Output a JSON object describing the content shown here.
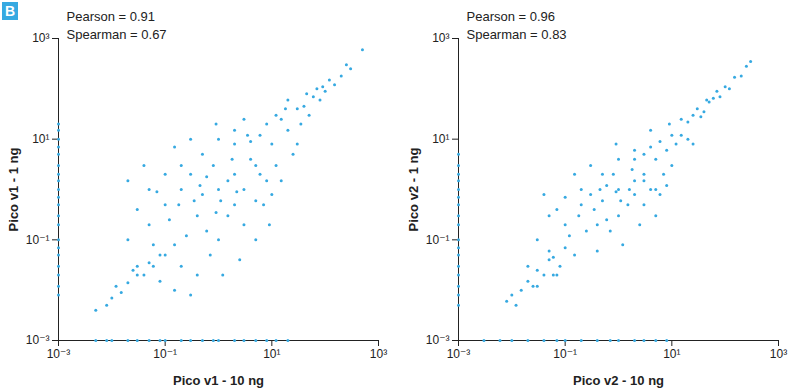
{
  "panel_label": "B",
  "chart_data": [
    {
      "type": "scatter",
      "xlabel": "Pico v1 - 10 ng",
      "ylabel": "Pico v1 - 1 ng",
      "annotations": [
        "Pearson = 0.91",
        "Spearman = 0.67"
      ],
      "color": "#36a9e1",
      "log": true,
      "grid": false,
      "xlim": [
        0.001,
        1000
      ],
      "ylim": [
        0.001,
        1000
      ],
      "xticks": [
        {
          "value": 0.001,
          "label": "10⁻³"
        },
        {
          "value": 0.1,
          "label": "10⁻¹"
        },
        {
          "value": 10,
          "label": "10¹"
        },
        {
          "value": 1000,
          "label": "10³"
        }
      ],
      "yticks": [
        {
          "value": 0.001,
          "label": "10⁻³"
        },
        {
          "value": 0.1,
          "label": "10⁻¹"
        },
        {
          "value": 10,
          "label": "10¹"
        },
        {
          "value": 1000,
          "label": "10³"
        }
      ],
      "x": [
        300,
        500,
        200,
        150,
        100,
        80,
        120,
        60,
        250,
        90,
        40,
        50,
        70,
        30,
        35,
        45,
        20,
        15,
        10,
        12,
        8,
        25,
        18,
        6,
        5,
        10,
        15,
        30,
        7,
        4,
        3,
        2,
        20,
        9,
        5,
        12,
        1,
        2,
        0.5,
        1.5,
        0.8,
        3,
        2,
        1,
        0.5,
        0.3,
        3,
        1,
        0.7,
        2,
        4,
        0.4,
        0.2,
        0.1,
        0.3,
        0.2,
        0.6,
        1.2,
        2.5,
        5,
        6,
        0.9,
        0.15,
        0.1,
        0.05,
        0.05,
        0.08,
        0.03,
        0.04,
        0.02,
        0.03,
        0.02,
        0.15,
        0.4,
        0.25,
        0.6,
        1.8,
        1.1,
        0.35,
        0.12,
        0.07,
        3.5,
        8,
        0.9,
        1.5,
        2.2,
        0.45,
        0.18,
        0.06,
        0.01,
        0.02,
        0.03,
        0.05,
        0.008,
        0.015,
        0.04,
        0.06,
        0.1,
        0.012,
        0.025,
        0.005,
        0.2,
        0.15,
        0.08,
        0.3,
        0.001,
        0.001,
        0.001,
        0.001,
        0.001,
        0.001,
        0.001,
        0.001,
        0.001,
        0.001,
        0.001,
        0.001,
        0.001,
        0.001,
        0.001,
        0.001,
        0.001,
        0.001,
        0.001,
        0.001,
        0.005,
        0.008,
        0.01,
        0.02,
        0.03,
        0.05,
        0.08,
        0.1,
        0.2,
        0.3,
        0.5,
        0.8,
        1,
        2,
        3,
        5,
        8,
        12,
        20
      ],
      "values": [
        250,
        600,
        180,
        120,
        90,
        60,
        150,
        70,
        300,
        110,
        45,
        30,
        100,
        40,
        20,
        80,
        15,
        25,
        8,
        3,
        20,
        5,
        40,
        12,
        3,
        0.8,
        1.5,
        8,
        0.5,
        9,
        25,
        15,
        60,
        0.2,
        0.1,
        30,
        1,
        2,
        0.8,
        0.3,
        3,
        1,
        0.5,
        10,
        5,
        2,
        0.2,
        0.1,
        0.05,
        8,
        4,
        0.3,
        1,
        0.5,
        10,
        3,
        0.15,
        0.02,
        0.04,
        0.6,
        2,
        20,
        0.08,
        2,
        1,
        0.2,
        0.05,
        0.4,
        3,
        0.1,
        0.03,
        1.5,
        7,
        0.02,
        0.12,
        1.8,
        4,
        0.6,
        0.6,
        0.25,
        0.9,
        12,
        1.5,
        0.35,
        1.5,
        0.9,
        1.2,
        0.5,
        0.08,
        0.007,
        0.014,
        0.02,
        0.035,
        0.005,
        0.009,
        0.02,
        0.03,
        0.05,
        0.012,
        0.025,
        0.004,
        0.03,
        0.01,
        0.015,
        0.008,
        20,
        15,
        10,
        7,
        5,
        3,
        2,
        1.5,
        1,
        0.7,
        0.5,
        0.3,
        0.2,
        0.1,
        0.07,
        0.05,
        0.03,
        0.02,
        0.012,
        0.008,
        0.001,
        0.001,
        0.001,
        0.001,
        0.001,
        0.001,
        0.001,
        0.001,
        0.001,
        0.001,
        0.001,
        0.001,
        0.001,
        0.001,
        0.001,
        0.001,
        0.001,
        0.001,
        0.001
      ]
    },
    {
      "type": "scatter",
      "xlabel": "Pico v2 - 10 ng",
      "ylabel": "Pico v2 - 1 ng",
      "annotations": [
        "Pearson = 0.96",
        "Spearman = 0.83"
      ],
      "color": "#36a9e1",
      "log": true,
      "grid": false,
      "xlim": [
        0.001,
        1000
      ],
      "ylim": [
        0.001,
        1000
      ],
      "xticks": [
        {
          "value": 0.001,
          "label": "10⁻³"
        },
        {
          "value": 0.1,
          "label": "10⁻¹"
        },
        {
          "value": 10,
          "label": "10¹"
        },
        {
          "value": 1000,
          "label": "10³"
        }
      ],
      "yticks": [
        {
          "value": 0.001,
          "label": "10⁻³"
        },
        {
          "value": 0.1,
          "label": "10⁻¹"
        },
        {
          "value": 10,
          "label": "10¹"
        },
        {
          "value": 1000,
          "label": "10³"
        }
      ],
      "x": [
        300,
        250,
        200,
        150,
        100,
        80,
        60,
        120,
        50,
        40,
        30,
        70,
        35,
        25,
        45,
        20,
        15,
        10,
        12,
        8,
        6,
        5,
        20,
        10,
        4,
        7,
        3,
        15,
        9,
        5,
        2,
        3,
        25,
        4,
        6,
        8,
        1,
        2,
        0.5,
        1.5,
        0.8,
        3,
        2,
        1,
        0.5,
        0.3,
        3,
        1,
        0.7,
        2,
        0.4,
        0.2,
        0.1,
        0.3,
        0.2,
        0.6,
        1.2,
        2.5,
        5,
        0.9,
        0.15,
        0.1,
        0.05,
        0.05,
        0.08,
        0.03,
        0.04,
        0.02,
        0.03,
        0.15,
        0.4,
        0.25,
        0.6,
        1.8,
        1.1,
        0.35,
        0.12,
        0.07,
        0.06,
        0.9,
        1.6,
        0.45,
        4,
        0.18,
        0.01,
        0.02,
        0.03,
        0.015,
        0.05,
        0.008,
        0.04,
        0.06,
        0.1,
        0.012,
        0.025,
        0.07,
        0.001,
        0.001,
        0.001,
        0.001,
        0.001,
        0.001,
        0.001,
        0.001,
        0.001,
        0.001,
        0.001,
        0.001,
        0.001,
        0.001,
        0.001,
        0.001,
        0.001,
        0.003,
        0.006,
        0.01,
        0.02,
        0.04,
        0.07,
        0.1,
        0.2,
        0.4,
        0.7,
        1,
        2,
        3,
        5,
        8
      ],
      "values": [
        350,
        280,
        180,
        170,
        110,
        70,
        65,
        100,
        55,
        35,
        40,
        90,
        28,
        30,
        60,
        22,
        12,
        12,
        8,
        6,
        9,
        4,
        10,
        3,
        7,
        2,
        5,
        25,
        20,
        1,
        6,
        1.5,
        8,
        15,
        0.8,
        1.2,
        1,
        1.5,
        0.6,
        0.5,
        2,
        2,
        0.8,
        4,
        2,
        0.8,
        0.5,
        0.3,
        0.15,
        4,
        0.2,
        0.5,
        0.2,
        3,
        1,
        0.25,
        0.08,
        0.2,
        0.3,
        8,
        0.05,
        0.7,
        0.3,
        0.06,
        0.03,
        0.1,
        0.8,
        0.03,
        0.012,
        2,
        0.06,
        0.15,
        1.2,
        2.5,
        0.6,
        0.4,
        0.12,
        0.4,
        0.02,
        0.9,
        1,
        1,
        1,
        0.3,
        0.008,
        0.015,
        0.025,
        0.01,
        0.04,
        0.006,
        0.02,
        0.045,
        0.07,
        0.005,
        0.012,
        0.02,
        5,
        3,
        2,
        1.5,
        1,
        0.7,
        0.5,
        0.3,
        0.2,
        0.1,
        0.07,
        0.05,
        0.03,
        0.02,
        0.012,
        0.008,
        0.005,
        0.001,
        0.001,
        0.001,
        0.001,
        0.001,
        0.001,
        0.001,
        0.001,
        0.001,
        0.001,
        0.001,
        0.001,
        0.001,
        0.001,
        0.001
      ]
    }
  ]
}
